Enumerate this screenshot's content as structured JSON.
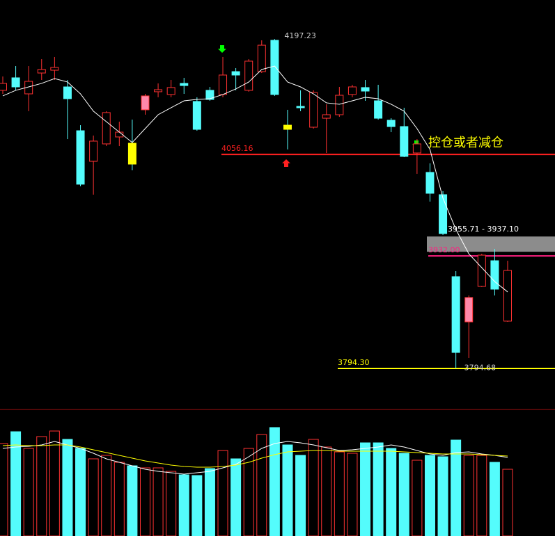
{
  "chart_data": {
    "type": "candlestick",
    "ylim": [
      3745,
      4245
    ],
    "up_color": "#ff3232",
    "down_color": "#54fcfc",
    "ma_color": "#ffffff",
    "highlight": [
      {
        "index": 10,
        "color": "#ffff00"
      },
      {
        "index": 11,
        "color": "#ff88aa"
      },
      {
        "index": 22,
        "color": "#ffff00"
      },
      {
        "index": 36,
        "color": "#ff88aa"
      }
    ],
    "ohlc": [
      [
        4134.5,
        4151.5,
        4130.2,
        4143.0
      ],
      [
        4149.8,
        4164.2,
        4134.5,
        4138.7
      ],
      [
        4130.2,
        4164.2,
        4109.0,
        4145.5
      ],
      [
        4155.7,
        4172.7,
        4147.2,
        4160.0
      ],
      [
        4159.1,
        4175.3,
        4147.2,
        4162.5
      ],
      [
        4138.7,
        4147.2,
        4074.9,
        4124.3
      ],
      [
        4085.1,
        4091.9,
        4017.1,
        4019.7
      ],
      [
        4047.7,
        4079.2,
        4006.9,
        4072.4
      ],
      [
        4069.0,
        4109.0,
        4066.4,
        4107.3
      ],
      [
        4077.5,
        4096.2,
        4066.4,
        4083.4
      ],
      [
        4069.8,
        4098.7,
        4036.7,
        4044.3
      ],
      [
        4110.7,
        4130.2,
        4104.7,
        4127.7
      ],
      [
        4132.8,
        4143.0,
        4126.0,
        4135.3
      ],
      [
        4129.4,
        4147.2,
        4126.0,
        4137.9
      ],
      [
        4143.0,
        4149.8,
        4130.2,
        4140.4
      ],
      [
        4120.9,
        4126.0,
        4085.1,
        4086.8
      ],
      [
        4134.5,
        4138.7,
        4121.7,
        4123.4
      ],
      [
        4129.4,
        4175.3,
        4126.0,
        4153.2
      ],
      [
        4157.4,
        4161.7,
        4134.5,
        4153.2
      ],
      [
        4134.5,
        4172.7,
        4132.8,
        4170.2
      ],
      [
        4157.4,
        4195.7,
        4155.7,
        4189.7
      ],
      [
        4195.7,
        4197.23,
        4127.7,
        4129.4
      ],
      [
        4091.9,
        4110.7,
        4062.2,
        4086.8
      ],
      [
        4114.9,
        4134.5,
        4109.0,
        4113.2
      ],
      [
        4089.4,
        4134.5,
        4087.7,
        4131.9
      ],
      [
        4100.4,
        4117.5,
        4057.9,
        4104.7
      ],
      [
        4104.7,
        4138.7,
        4102.1,
        4128.5
      ],
      [
        4129.4,
        4141.3,
        4126.0,
        4138.7
      ],
      [
        4137.9,
        4147.2,
        4121.7,
        4133.6
      ],
      [
        4121.7,
        4141.3,
        4098.7,
        4100.4
      ],
      [
        4097.9,
        4100.4,
        4083.4,
        4090.2
      ],
      [
        4090.2,
        4113.2,
        4052.8,
        4053.7
      ],
      [
        4057.9,
        4074.9,
        4032.4,
        4069.0
      ],
      [
        4034.1,
        4045.2,
        3998.4,
        4008.6
      ],
      [
        4006.9,
        4011.2,
        3957.6,
        3959.3
      ],
      [
        3906.6,
        3913.4,
        3794.68,
        3813.9
      ],
      [
        3851.3,
        3883.6,
        3807.1,
        3881.1
      ],
      [
        3894.7,
        3934.6,
        3893.8,
        3932.9
      ],
      [
        3926.1,
        3940.6,
        3883.6,
        3891.3
      ],
      [
        3852.2,
        3926.1,
        3851.3,
        3914.2
      ]
    ],
    "ma": [
      4127.7,
      4134.5,
      4138.7,
      4143.0,
      4148.9,
      4144.7,
      4130.2,
      4109.0,
      4096.2,
      4083.4,
      4070.7,
      4087.7,
      4104.7,
      4113.2,
      4121.7,
      4123.4,
      4124.3,
      4129.4,
      4136.2,
      4144.7,
      4160.0,
      4164.2,
      4144.7,
      4138.7,
      4130.2,
      4119.2,
      4117.5,
      4121.7,
      4126.0,
      4124.3,
      4117.5,
      4109.0,
      4087.7,
      4062.2,
      4002.7,
      3964.4,
      3934.6,
      3917.6,
      3900.6,
      3887.9
    ],
    "hlines": [
      {
        "value": 4056.16,
        "color": "#ff2020"
      },
      {
        "value": 3932,
        "label": "3932.00",
        "color": "#ff2080"
      },
      {
        "value": 3794.3,
        "label": "3794.30",
        "color": "#ffff00"
      }
    ],
    "band": {
      "from": 3955.71,
      "to": 3937.1,
      "label": "3955.71 - 3937.10",
      "color": "#8c8c8c"
    },
    "annotation": "控仓或者减仓",
    "volume_lim": [
      0,
      180
    ],
    "volume": [
      133,
      150,
      126,
      143,
      151,
      139,
      126,
      111,
      116,
      106,
      101,
      98,
      98,
      93,
      88,
      87,
      97,
      123,
      111,
      126,
      146,
      156,
      131,
      116,
      139,
      128,
      121,
      119,
      134,
      134,
      126,
      119,
      109,
      116,
      114,
      138,
      116,
      116,
      106,
      96
    ],
    "volume_ma": [
      {
        "color": "#ffffff",
        "values": [
          126,
          128,
          129,
          131,
          136,
          131,
          126,
          119,
          111,
          106,
          101,
          96,
          93,
          91,
          89,
          91,
          93,
          98,
          103,
          114,
          126,
          133,
          136,
          134,
          131,
          127,
          123,
          124,
          126,
          128,
          131,
          128,
          123,
          118,
          116,
          120,
          121,
          118,
          116,
          113
        ]
      },
      {
        "color": "#ffff00",
        "values": [
          130,
          131,
          130,
          130,
          131,
          131,
          128,
          124,
          120,
          116,
          112,
          108,
          105,
          102,
          100,
          99,
          99,
          100,
          102,
          106,
          112,
          117,
          121,
          122,
          123,
          123,
          122,
          122,
          122,
          122,
          122,
          121,
          120,
          119,
          118,
          118,
          118,
          117,
          116,
          115
        ]
      }
    ]
  }
}
